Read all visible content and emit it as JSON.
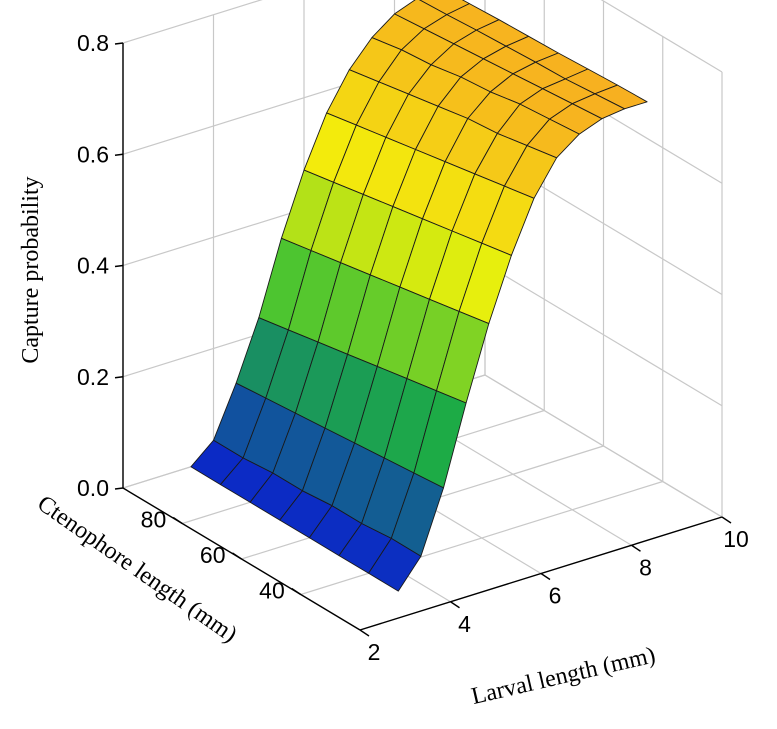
{
  "chart_data": {
    "type": "surface3d",
    "title": "",
    "zlabel": "Capture probability",
    "xlabel": "Larval length (mm)",
    "ylabel": "Ctenophore length (mm)",
    "z_ticks": [
      "0.0",
      "0.2",
      "0.4",
      "0.6",
      "0.8"
    ],
    "x_ticks": [
      "2",
      "4",
      "6",
      "8",
      "10"
    ],
    "y_ticks": [
      "40",
      "60",
      "80"
    ],
    "zlim": [
      0,
      0.8
    ],
    "xlim": [
      2,
      10
    ],
    "ylim": [
      20,
      100
    ],
    "grid": true,
    "colormap": [
      "#0a1fd0",
      "#1fb83a",
      "#f2f20a",
      "#f7b020"
    ],
    "larval_length_mm": [
      3.5,
      4.0,
      4.5,
      5.0,
      5.5,
      6.0,
      6.5,
      7.0,
      7.5,
      8.0,
      8.5,
      9.0
    ],
    "ctenophore_length_mm": [
      30,
      40,
      50,
      60,
      70,
      80,
      90,
      100
    ],
    "capture_probability": [
      [
        0.0,
        0.05,
        0.16,
        0.3,
        0.43,
        0.54,
        0.63,
        0.69,
        0.72,
        0.735,
        0.74,
        0.74
      ],
      [
        0.0,
        0.05,
        0.155,
        0.29,
        0.42,
        0.53,
        0.62,
        0.68,
        0.715,
        0.73,
        0.735,
        0.738
      ],
      [
        0.0,
        0.045,
        0.15,
        0.28,
        0.41,
        0.52,
        0.61,
        0.67,
        0.71,
        0.725,
        0.73,
        0.735
      ],
      [
        0.0,
        0.045,
        0.145,
        0.27,
        0.4,
        0.51,
        0.6,
        0.665,
        0.7,
        0.72,
        0.728,
        0.732
      ],
      [
        0.0,
        0.04,
        0.14,
        0.26,
        0.39,
        0.5,
        0.59,
        0.655,
        0.695,
        0.715,
        0.725,
        0.73
      ],
      [
        0.0,
        0.04,
        0.135,
        0.25,
        0.38,
        0.49,
        0.58,
        0.645,
        0.685,
        0.71,
        0.722,
        0.728
      ],
      [
        0.0,
        0.035,
        0.13,
        0.24,
        0.37,
        0.48,
        0.57,
        0.635,
        0.68,
        0.705,
        0.718,
        0.725
      ],
      [
        0.0,
        0.035,
        0.125,
        0.23,
        0.36,
        0.47,
        0.56,
        0.625,
        0.67,
        0.7,
        0.715,
        0.722
      ]
    ]
  }
}
